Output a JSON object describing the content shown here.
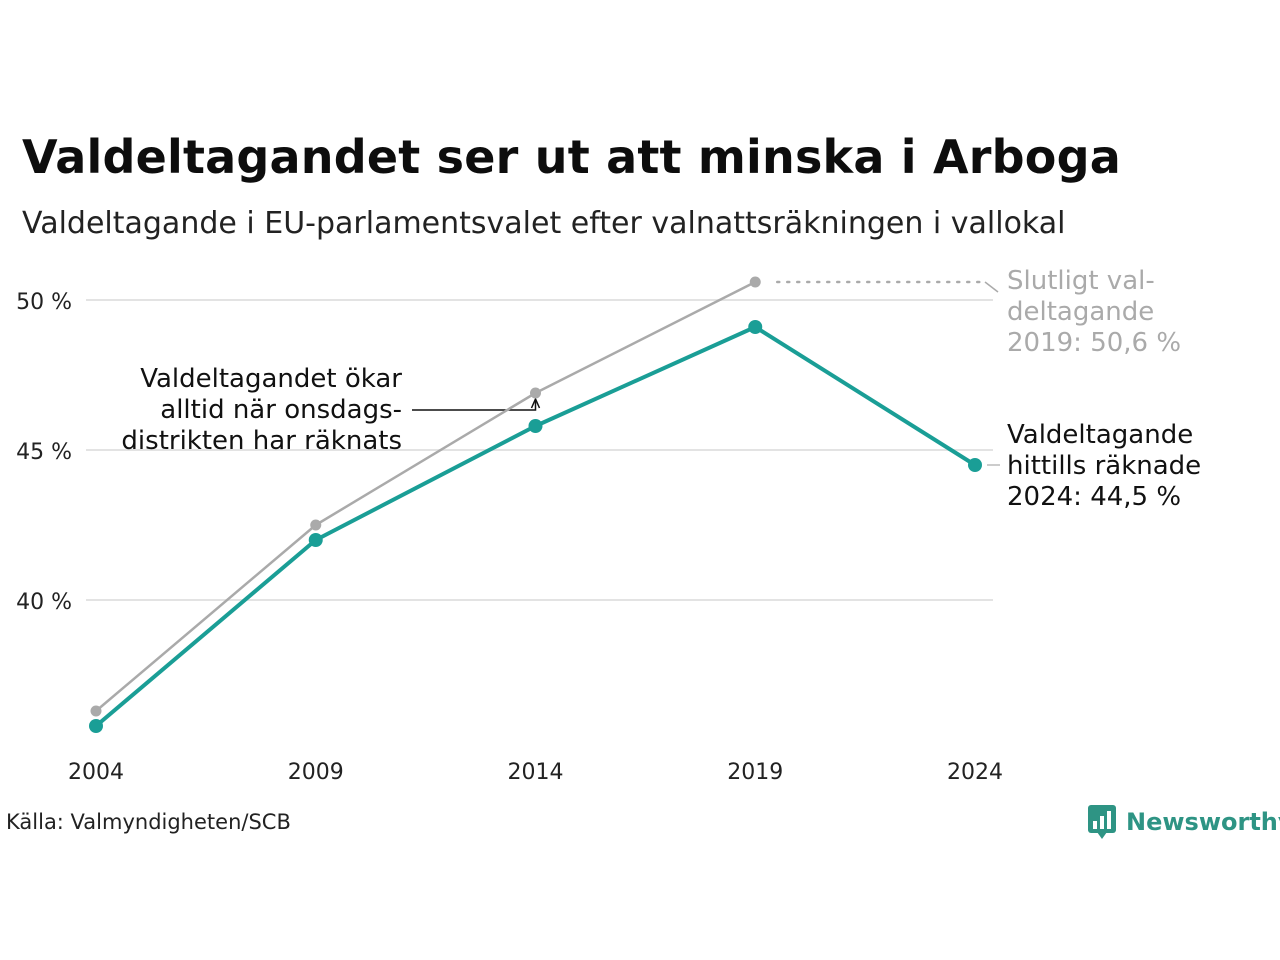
{
  "title": "Valdeltagandet ser ut att minska i Arboga",
  "subtitle": "Valdeltagande i EU-parlamentsvalet efter valnattsräkningen i vallokal",
  "source": "Källa: Valmyndigheten/SCB",
  "brand": "Newsworthy",
  "colors": {
    "counted": "#1a9e96",
    "final": "#aaaaaa",
    "grid": "#e3e3e3",
    "brand": "#2e9484"
  },
  "annotations": {
    "final": [
      "Slutligt val-",
      "deltagande",
      "2019: 50,6 %"
    ],
    "counted": [
      "Valdeltagande",
      "hittills räknade",
      "2024: 44,5 %"
    ],
    "wednesday": [
      "Valdeltagandet ökar",
      "alltid när onsdags-",
      "distrikten har räknats"
    ]
  },
  "chart_data": {
    "type": "line",
    "x": [
      2004,
      2009,
      2014,
      2019,
      2024
    ],
    "xlabel": "",
    "ylabel": "",
    "ylim": [
      34,
      52
    ],
    "yticks": [
      40,
      45,
      50
    ],
    "ytick_labels": [
      "40 %",
      "45 %",
      "50 %"
    ],
    "grid": true,
    "series": [
      {
        "key": "final",
        "values": [
          36.3,
          42.5,
          46.9,
          50.6,
          null
        ]
      },
      {
        "key": "counted",
        "values": [
          35.8,
          42.0,
          45.8,
          49.1,
          44.5
        ]
      }
    ]
  }
}
